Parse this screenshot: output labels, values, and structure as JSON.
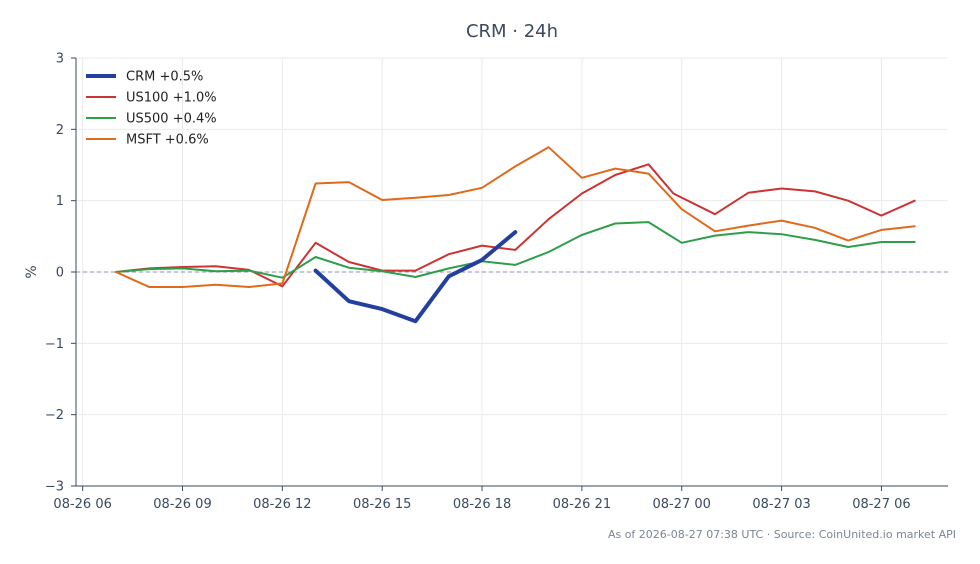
{
  "chart_data": {
    "type": "line",
    "title": "CRM · 24h",
    "ylabel": "%",
    "xlabel": "",
    "ylim": [
      -3,
      3
    ],
    "yticks": [
      -3,
      -2,
      -1,
      0,
      1,
      2,
      3
    ],
    "ytick_labels": [
      "−3",
      "−2",
      "−1",
      "0",
      "1",
      "2",
      "3"
    ],
    "xlim_hours": [
      -0.2,
      26
    ],
    "x_unit": "hours from 08-26 06:00",
    "xticks": [
      0,
      3,
      6,
      9,
      12,
      15,
      18,
      21,
      24
    ],
    "xtick_labels": [
      "08-26 06",
      "08-26 09",
      "08-26 12",
      "08-26 15",
      "08-26 18",
      "08-26 21",
      "08-27 00",
      "08-27 03",
      "08-27 06"
    ],
    "grid": true,
    "zero_line": true,
    "legend_position": "top-left",
    "series": [
      {
        "name": "CRM +0.5%",
        "color": "#2340a0",
        "width": 4,
        "x": [
          7,
          8,
          9,
          10,
          11,
          12,
          13
        ],
        "y": [
          0.02,
          -0.41,
          -0.52,
          -0.69,
          -0.06,
          0.17,
          0.56
        ]
      },
      {
        "name": "US100 +1.0%",
        "color": "#cc3333",
        "width": 2,
        "x": [
          1,
          2,
          3,
          4,
          5,
          6,
          7,
          8,
          9,
          10,
          11,
          12,
          13,
          14,
          15,
          16,
          17,
          17.75,
          19,
          20,
          21,
          22,
          23,
          24,
          25
        ],
        "y": [
          0.0,
          0.05,
          0.07,
          0.08,
          0.03,
          -0.2,
          0.41,
          0.14,
          0.02,
          0.02,
          0.25,
          0.37,
          0.31,
          0.74,
          1.1,
          1.36,
          1.51,
          1.1,
          0.81,
          1.11,
          1.17,
          1.13,
          1.0,
          0.79,
          1.0
        ]
      },
      {
        "name": "US500 +0.4%",
        "color": "#2e9e4a",
        "width": 2,
        "x": [
          1,
          2,
          3,
          4,
          5,
          6,
          7,
          8,
          9,
          10,
          11,
          12,
          13,
          14,
          15,
          16,
          17,
          18,
          19,
          20,
          21,
          22,
          23,
          24,
          25
        ],
        "y": [
          0.0,
          0.04,
          0.05,
          0.01,
          0.02,
          -0.08,
          0.21,
          0.06,
          0.01,
          -0.07,
          0.05,
          0.15,
          0.1,
          0.28,
          0.52,
          0.68,
          0.7,
          0.41,
          0.51,
          0.56,
          0.53,
          0.45,
          0.35,
          0.42,
          0.42
        ]
      },
      {
        "name": "MSFT +0.6%",
        "color": "#e06a1b",
        "width": 2,
        "x": [
          1,
          2,
          3,
          4,
          5,
          6,
          7,
          8,
          9,
          10,
          11,
          12,
          13,
          14,
          15,
          16,
          17,
          18,
          19,
          20,
          21,
          22,
          23,
          24,
          25
        ],
        "y": [
          0.0,
          -0.21,
          -0.21,
          -0.18,
          -0.21,
          -0.16,
          1.24,
          1.26,
          1.01,
          1.04,
          1.08,
          1.18,
          1.48,
          1.75,
          1.32,
          1.45,
          1.38,
          0.88,
          0.57,
          0.65,
          0.72,
          0.62,
          0.44,
          0.59,
          0.64
        ]
      }
    ]
  },
  "footer": "As of 2026-08-27 07:38 UTC · Source: CoinUnited.io market API"
}
